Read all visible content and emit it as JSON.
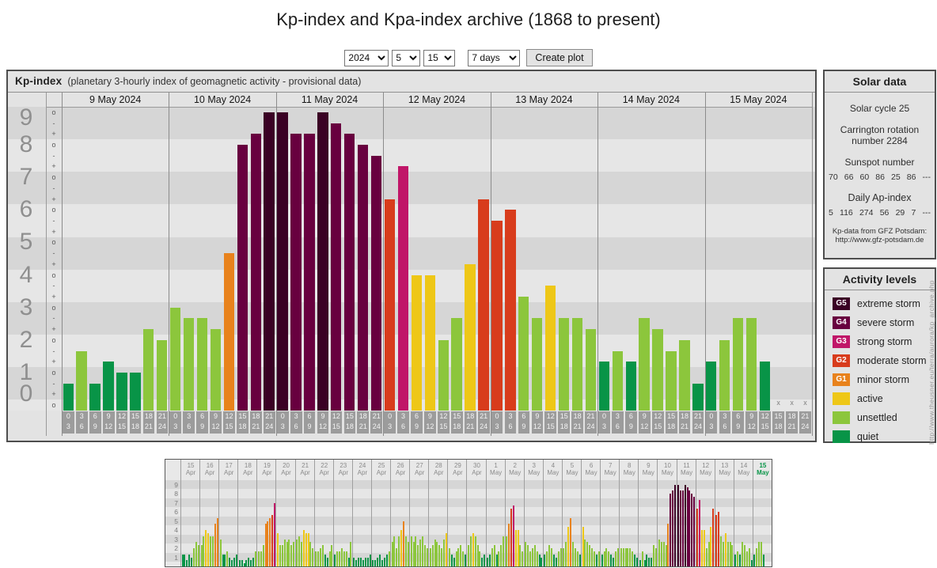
{
  "page_title": "Kp-index and Kpa-index archive (1868 to present)",
  "controls": {
    "year": "2024",
    "month": "5",
    "day": "15",
    "range": "7 days",
    "create_button": "Create plot"
  },
  "colors": {
    "g5": "#3a0124",
    "g4": "#68003f",
    "g3": "#c01668",
    "g2": "#d83c1c",
    "g1": "#e8821c",
    "active": "#eec717",
    "unsettled": "#8cc63c",
    "quiet": "#089447",
    "stripe_dark": "#d6d6d6",
    "stripe_light": "#e6e6e6",
    "grid": "#8c8c8c",
    "tick_block": "#9c9c9c"
  },
  "main_chart": {
    "type": "bar",
    "header_bold": "Kp-index",
    "header_rest": "(planetary 3-hourly index of geomagnetic activity - provisional data)",
    "y_numbers": [
      9,
      8,
      7,
      6,
      5,
      4,
      3,
      2,
      1,
      0
    ],
    "tick_cycle": [
      "o",
      "-",
      "+"
    ],
    "ylim": [
      0,
      9.67
    ],
    "missing_marker": "x",
    "time_slots": [
      [
        "0",
        "3"
      ],
      [
        "3",
        "6"
      ],
      [
        "6",
        "9"
      ],
      [
        "9",
        "12"
      ],
      [
        "12",
        "15"
      ],
      [
        "15",
        "18"
      ],
      [
        "18",
        "21"
      ],
      [
        "21",
        "24"
      ]
    ],
    "days": [
      {
        "date": "9 May 2024",
        "values": [
          0.67,
          1.67,
          0.67,
          1.33,
          1,
          1,
          2.33,
          2
        ]
      },
      {
        "date": "10 May 2024",
        "values": [
          3,
          2.67,
          2.67,
          2.33,
          4.67,
          8,
          8.33,
          9
        ]
      },
      {
        "date": "11 May 2024",
        "values": [
          9,
          8.33,
          8.33,
          9,
          8.67,
          8.33,
          8,
          7.67
        ]
      },
      {
        "date": "12 May 2024",
        "values": [
          6.33,
          7.33,
          4,
          4,
          2,
          2.67,
          4.33,
          6.33
        ]
      },
      {
        "date": "13 May 2024",
        "values": [
          5.67,
          6,
          3.33,
          2.67,
          3.67,
          2.67,
          2.67,
          2.33
        ]
      },
      {
        "date": "14 May 2024",
        "values": [
          1.33,
          1.67,
          1.33,
          2.67,
          2.33,
          1.67,
          2,
          0.67
        ]
      },
      {
        "date": "15 May 2024",
        "values": [
          1.33,
          2,
          2.67,
          2.67,
          1.33,
          null,
          null,
          null
        ]
      }
    ]
  },
  "solar_data": {
    "title": "Solar data",
    "cycle": "Solar cycle 25",
    "carrington": "Carrington rotation number 2284",
    "sunspot_title": "Sunspot number",
    "sunspot_values": [
      "70",
      "66",
      "60",
      "86",
      "25",
      "86",
      "---"
    ],
    "ap_title": "Daily Ap-index",
    "ap_values": [
      "5",
      "116",
      "274",
      "56",
      "29",
      "7",
      "---"
    ],
    "credit_line1": "Kp-data from GFZ Potsdam:",
    "credit_line2": "http://www.gfz-potsdam.de"
  },
  "activity_levels": {
    "title": "Activity levels",
    "items": [
      {
        "code": "G5",
        "label": "extreme storm",
        "color_key": "g5"
      },
      {
        "code": "G4",
        "label": "severe storm",
        "color_key": "g4"
      },
      {
        "code": "G3",
        "label": "strong storm",
        "color_key": "g3"
      },
      {
        "code": "G2",
        "label": "moderate storm",
        "color_key": "g2"
      },
      {
        "code": "G1",
        "label": "minor storm",
        "color_key": "g1"
      },
      {
        "code": "",
        "label": "active",
        "color_key": "active"
      },
      {
        "code": "",
        "label": "unsettled",
        "color_key": "unsettled"
      },
      {
        "code": "",
        "label": "quiet",
        "color_key": "quiet"
      }
    ]
  },
  "watermark_url": "http://www.theusner.eu/terra/aurora/kp_archive.php",
  "mini_chart": {
    "type": "bar",
    "y_numbers": [
      9,
      8,
      7,
      6,
      5,
      4,
      3,
      2,
      1
    ],
    "ylim": [
      0,
      9.67
    ],
    "current_day_index": 30,
    "days": [
      {
        "day": "15",
        "month": "Apr",
        "values": [
          1.33,
          1.33,
          0.67,
          1.33,
          1,
          2,
          2.67,
          2.33
        ]
      },
      {
        "day": "16",
        "month": "Apr",
        "values": [
          2.33,
          3.33,
          4,
          3.67,
          3.33,
          3.33,
          4.67,
          5.33
        ]
      },
      {
        "day": "17",
        "month": "Apr",
        "values": [
          3,
          1.33,
          1.33,
          1.67,
          1,
          0.67,
          1,
          1.33
        ]
      },
      {
        "day": "18",
        "month": "Apr",
        "values": [
          0.67,
          0.67,
          0.33,
          0.67,
          1,
          0.67,
          1,
          1.67
        ]
      },
      {
        "day": "19",
        "month": "Apr",
        "values": [
          1.67,
          1.67,
          2.33,
          4.67,
          5,
          5.33,
          5.67,
          7
        ]
      },
      {
        "day": "20",
        "month": "Apr",
        "values": [
          3.67,
          2.33,
          2.33,
          3,
          2.67,
          3,
          2.33,
          2.67
        ]
      },
      {
        "day": "21",
        "month": "Apr",
        "values": [
          3,
          3.33,
          2.67,
          4,
          3.67,
          3.67,
          2.67,
          2
        ]
      },
      {
        "day": "22",
        "month": "Apr",
        "values": [
          1.67,
          1.67,
          2,
          2.33,
          1.33,
          1,
          1.67,
          2.33
        ]
      },
      {
        "day": "23",
        "month": "Apr",
        "values": [
          1.33,
          1.67,
          1.67,
          2,
          1.67,
          1.67,
          1,
          2.67
        ]
      },
      {
        "day": "24",
        "month": "Apr",
        "values": [
          1,
          0.67,
          1,
          1,
          0.67,
          1,
          1,
          1.33
        ]
      },
      {
        "day": "25",
        "month": "Apr",
        "values": [
          0.67,
          0.67,
          1,
          1.33,
          0.67,
          1,
          1.33,
          1.67
        ]
      },
      {
        "day": "26",
        "month": "Apr",
        "values": [
          2.67,
          3.33,
          2,
          3.33,
          4,
          5,
          3.33,
          2.67
        ]
      },
      {
        "day": "27",
        "month": "Apr",
        "values": [
          3.33,
          2.67,
          3.33,
          2.33,
          3,
          3.33,
          2.33,
          2
        ]
      },
      {
        "day": "28",
        "month": "Apr",
        "values": [
          2,
          2.33,
          3,
          2.67,
          2.33,
          2,
          3,
          3.67
        ]
      },
      {
        "day": "29",
        "month": "Apr",
        "values": [
          2,
          1.33,
          1,
          1.67,
          2,
          2.33,
          1.67,
          1.33
        ]
      },
      {
        "day": "30",
        "month": "Apr",
        "values": [
          2.33,
          3.33,
          3.67,
          3.33,
          2.33,
          1.67,
          1,
          1.33
        ]
      },
      {
        "day": "1",
        "month": "May",
        "values": [
          1,
          1.33,
          2,
          2.33,
          1.33,
          1.67,
          2.33,
          3.33
        ]
      },
      {
        "day": "2",
        "month": "May",
        "values": [
          3.33,
          4.67,
          6.33,
          6.67,
          4,
          4,
          2.33,
          1.67
        ]
      },
      {
        "day": "3",
        "month": "May",
        "values": [
          2.67,
          2.33,
          1.67,
          2,
          2.33,
          1.67,
          1.33,
          1
        ]
      },
      {
        "day": "4",
        "month": "May",
        "values": [
          1.33,
          1.67,
          2.33,
          2,
          1.33,
          1,
          1.67,
          2
        ]
      },
      {
        "day": "5",
        "month": "May",
        "values": [
          2,
          2.67,
          4.33,
          5.33,
          2.67,
          2,
          1.67,
          1.33
        ]
      },
      {
        "day": "6",
        "month": "May",
        "values": [
          4.33,
          3,
          2.67,
          2.33,
          2,
          1.67,
          1.33,
          1.67
        ]
      },
      {
        "day": "7",
        "month": "May",
        "values": [
          1.33,
          1.67,
          2,
          1.67,
          1.33,
          1,
          1.67,
          2
        ]
      },
      {
        "day": "8",
        "month": "May",
        "values": [
          2,
          2,
          2,
          2,
          2,
          1.67,
          1.33,
          1
        ]
      },
      {
        "day": "9",
        "month": "May",
        "values": [
          0.67,
          1.67,
          0.67,
          1.33,
          1,
          1,
          2.33,
          2
        ]
      },
      {
        "day": "10",
        "month": "May",
        "values": [
          3,
          2.67,
          2.67,
          2.33,
          4.67,
          8,
          8.33,
          9
        ]
      },
      {
        "day": "11",
        "month": "May",
        "values": [
          9,
          8.33,
          8.33,
          9,
          8.67,
          8.33,
          8,
          7.67
        ]
      },
      {
        "day": "12",
        "month": "May",
        "values": [
          6.33,
          7.33,
          4,
          4,
          2,
          2.67,
          4.33,
          6.33
        ]
      },
      {
        "day": "13",
        "month": "May",
        "values": [
          5.67,
          6,
          3.33,
          2.67,
          3.67,
          2.67,
          2.67,
          2.33
        ]
      },
      {
        "day": "14",
        "month": "May",
        "values": [
          1.33,
          1.67,
          1.33,
          2.67,
          2.33,
          1.67,
          2,
          0.67
        ]
      },
      {
        "day": "15",
        "month": "May",
        "values": [
          1.33,
          2,
          2.67,
          2.67,
          1.33,
          null,
          null,
          null
        ]
      }
    ]
  }
}
